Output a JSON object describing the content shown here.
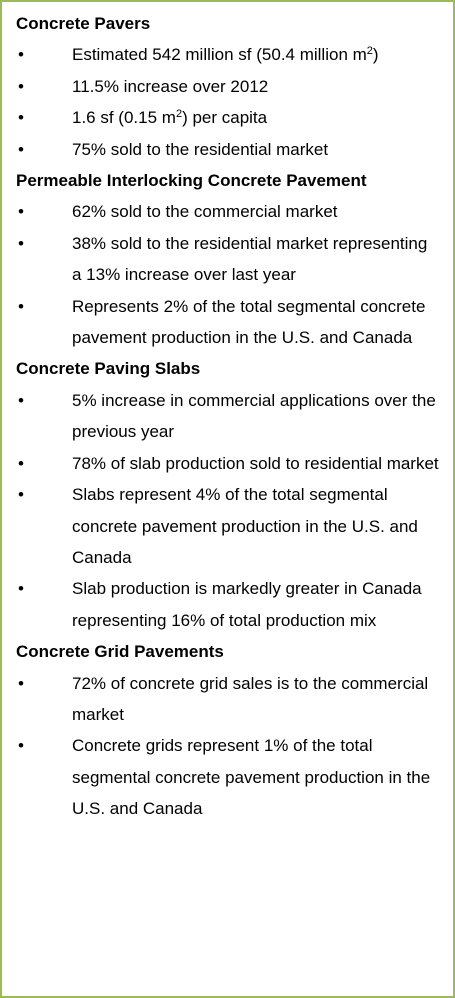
{
  "sections": [
    {
      "heading": "Concrete Pavers",
      "items": [
        {
          "parts": [
            "Estimated 542 million sf (50.4 million m",
            "2",
            ")"
          ]
        },
        {
          "parts": [
            "11.5% increase over 2012"
          ]
        },
        {
          "parts": [
            "1.6 sf (0.15 m",
            "2",
            ") per capita"
          ]
        },
        {
          "parts": [
            "75% sold to the residential market"
          ]
        }
      ]
    },
    {
      "heading": "Permeable Interlocking Concrete Pavement",
      "items": [
        {
          "parts": [
            "62% sold to the commercial market"
          ]
        },
        {
          "parts": [
            "38% sold to the residential market representing a 13% increase over last year"
          ]
        },
        {
          "parts": [
            "Represents 2% of the total segmental concrete pavement production in the U.S. and Canada"
          ]
        }
      ]
    },
    {
      "heading": "Concrete Paving Slabs",
      "items": [
        {
          "parts": [
            "5% increase in commercial applications over the previous year"
          ]
        },
        {
          "parts": [
            "78% of slab production sold to residential market"
          ]
        },
        {
          "parts": [
            "Slabs represent 4% of the total segmental concrete pavement production in the U.S. and Canada"
          ]
        },
        {
          "parts": [
            "Slab production is markedly greater in Canada representing 16% of total production mix"
          ]
        }
      ]
    },
    {
      "heading": "Concrete Grid Pavements",
      "items": [
        {
          "parts": [
            "72% of concrete grid sales is to the commercial market"
          ]
        },
        {
          "parts": [
            "Concrete grids represent 1% of the total segmental concrete pavement production in the U.S. and Canada"
          ]
        }
      ]
    }
  ]
}
